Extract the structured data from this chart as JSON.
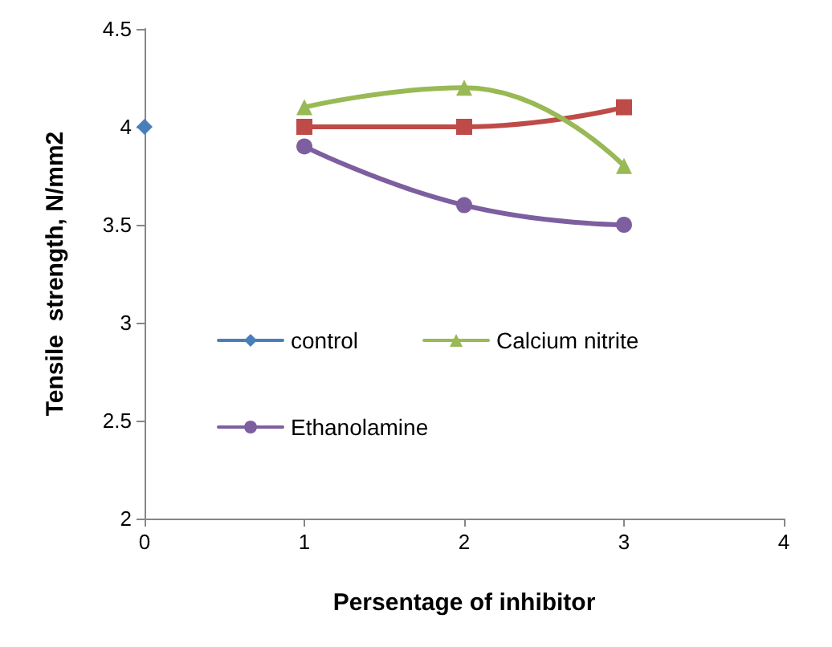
{
  "chart_data": {
    "type": "line",
    "xlabel": "Persentage of inhibitor",
    "ylabel": "Tensile  strength, N/mm2",
    "xlim": [
      0,
      4
    ],
    "xticks": [
      0,
      1,
      2,
      3,
      4
    ],
    "ylim": [
      2,
      4.5
    ],
    "yticks": [
      2,
      2.5,
      3,
      3.5,
      4,
      4.5
    ],
    "grid": false,
    "legend": "center",
    "line_style": "solid",
    "series": [
      {
        "name": "control",
        "color": "#4a7ebb",
        "marker": "diamond",
        "x": [
          0
        ],
        "values": [
          4.0
        ]
      },
      {
        "color": "#be4b48",
        "marker": "square",
        "x": [
          1,
          2,
          3
        ],
        "values": [
          4.0,
          4.0,
          4.1
        ]
      },
      {
        "name": "Calcium nitrite",
        "color": "#98b954",
        "marker": "triangle",
        "x": [
          1,
          2,
          3
        ],
        "values": [
          4.1,
          4.2,
          3.8
        ]
      },
      {
        "name": "Ethanolamine",
        "color": "#7d5fa0",
        "marker": "circle",
        "x": [
          1,
          2,
          3
        ],
        "values": [
          3.9,
          3.6,
          3.5
        ]
      }
    ]
  }
}
